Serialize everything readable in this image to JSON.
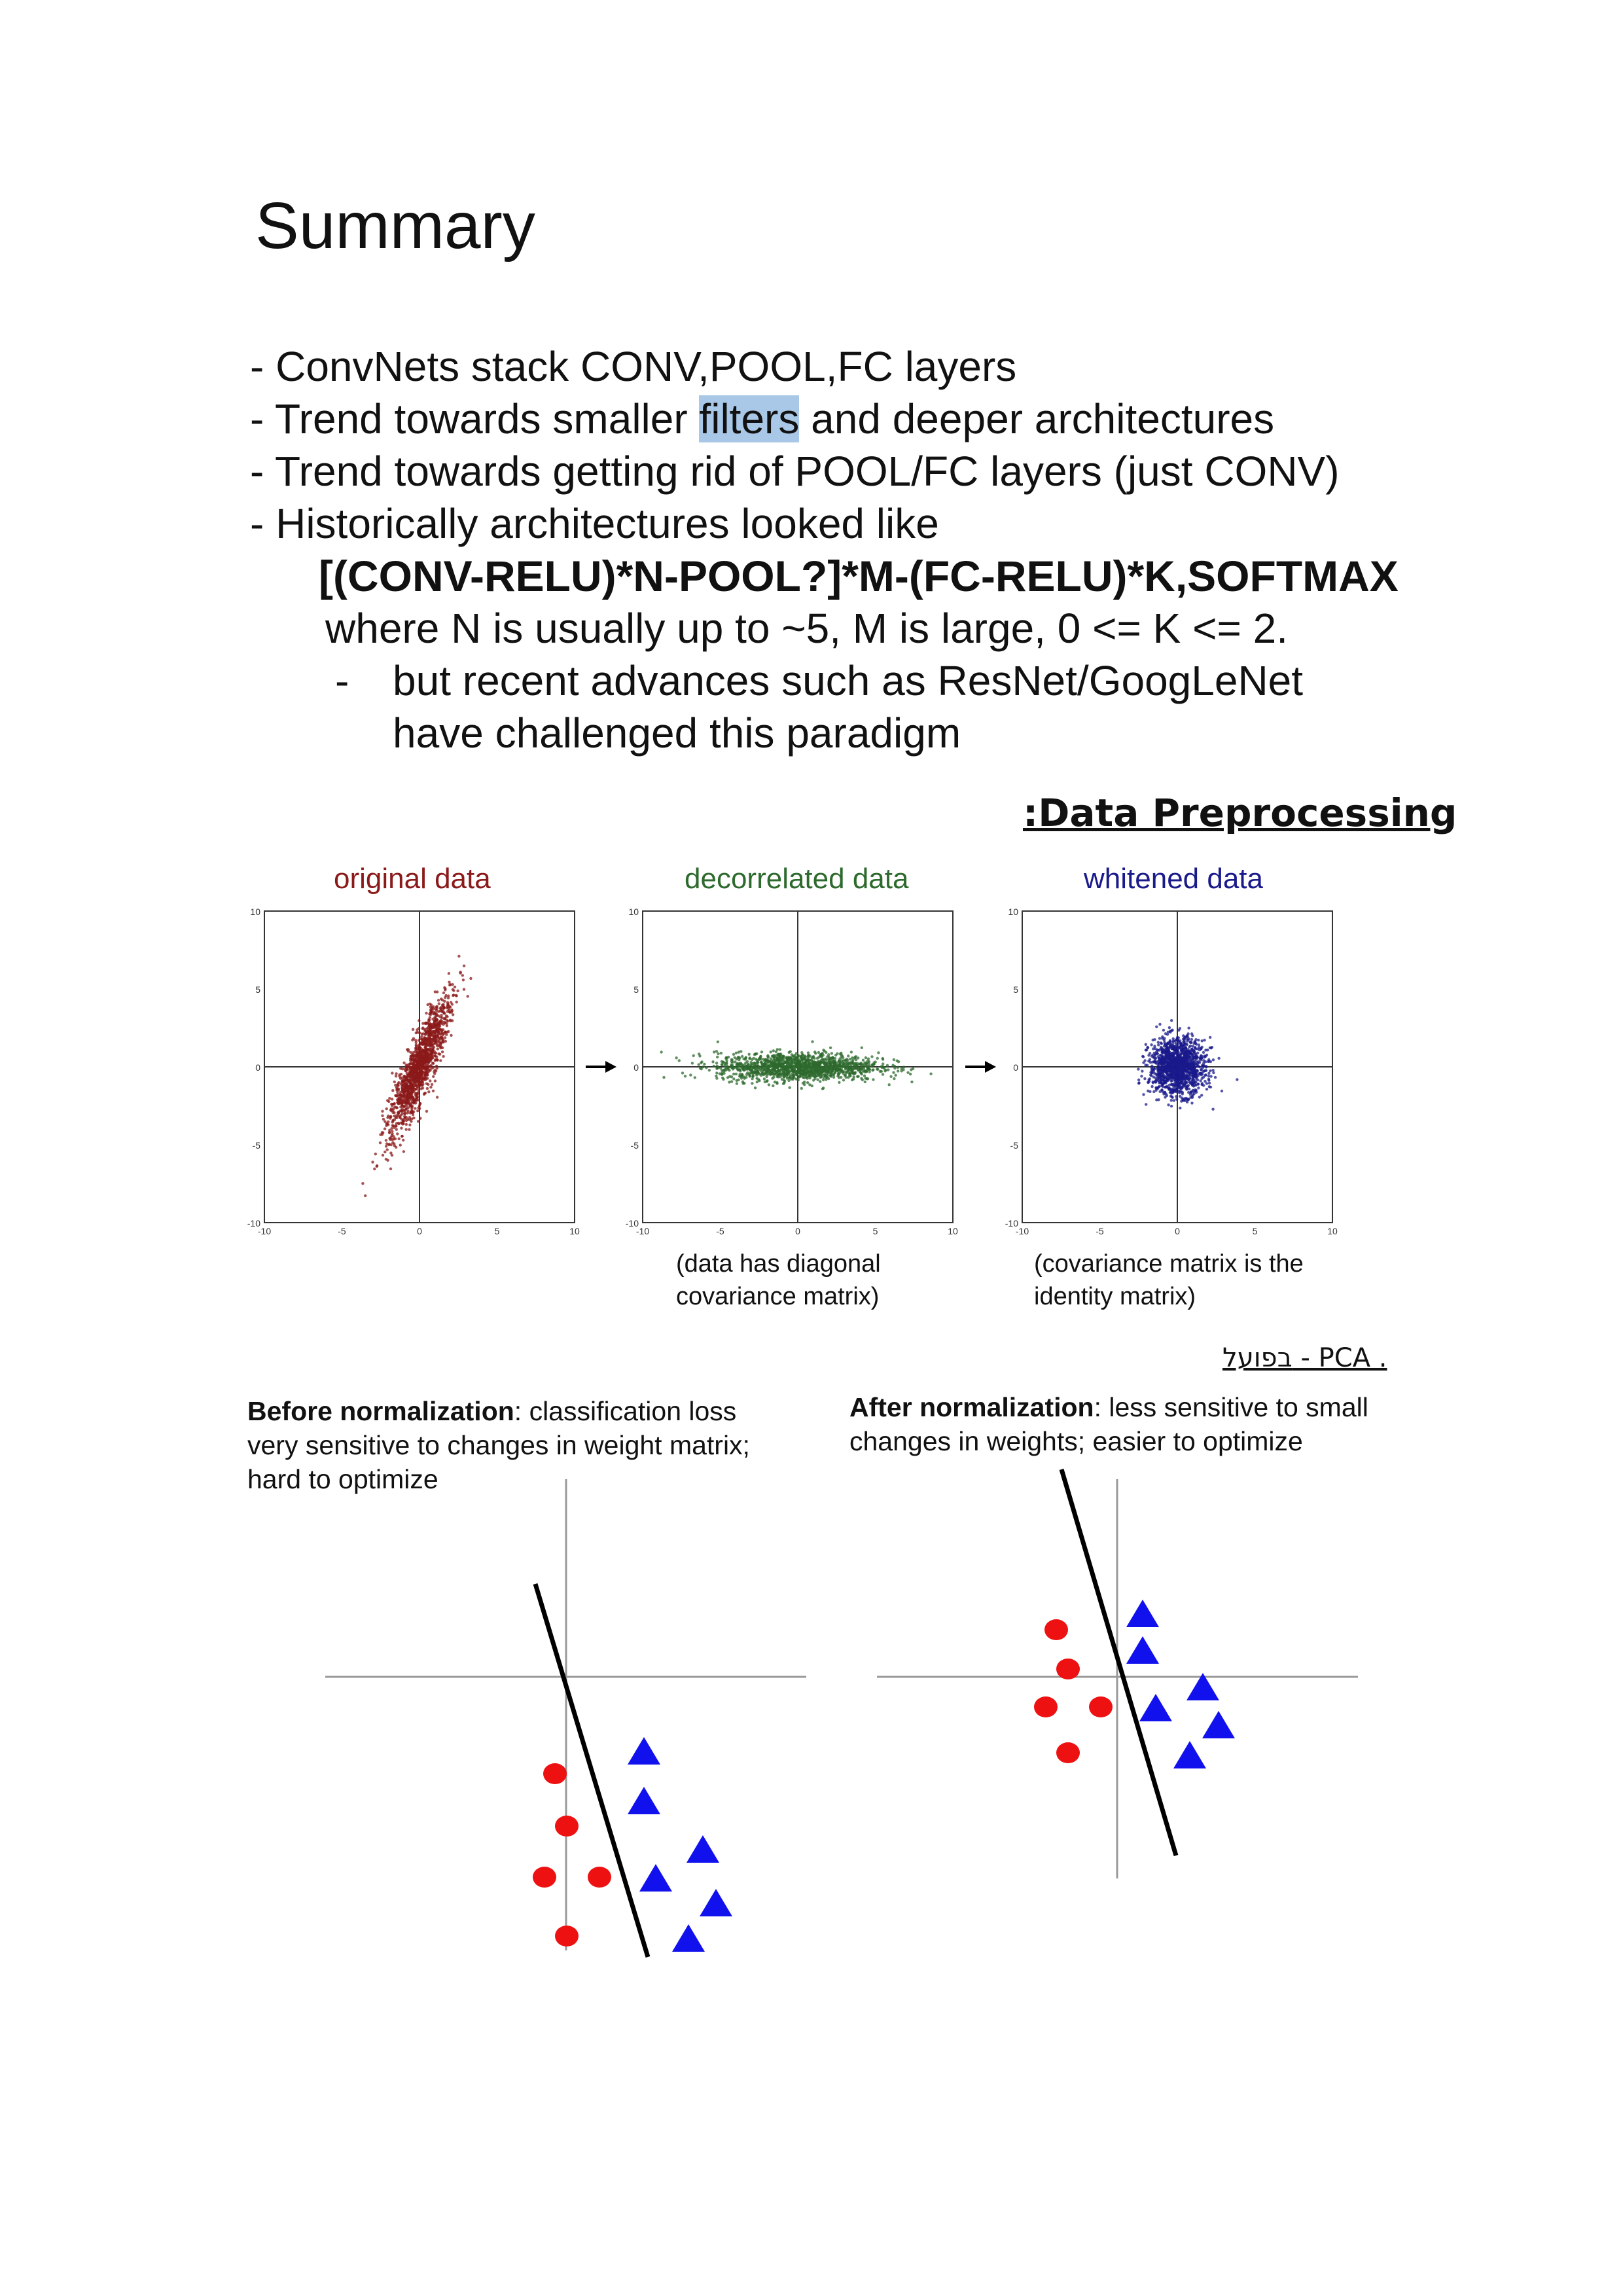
{
  "title": "Summary",
  "bullets": {
    "b1": "- ConvNets stack CONV,POOL,FC layers",
    "b2_pre": "- Trend towards smaller ",
    "b2_hl": "filters",
    "b2_post": " and deeper architectures",
    "b3": "- Trend towards getting rid of POOL/FC layers (just CONV)",
    "b4": "- Historically architectures looked like",
    "formula": "[(CONV-RELU)*N-POOL?]*M-(FC-RELU)*K,SOFTMAX",
    "where": "where N is usually up to ~5, M is large, 0 <= K <= 2.",
    "dash": "-",
    "sub1": "but recent advances such as ResNet/GoogLeNet",
    "sub2": "have challenged this paradigm"
  },
  "section_heading": ":Data Preprocessing",
  "preprocessing": {
    "plots": [
      {
        "name": "original data",
        "color": "#8b1a1a",
        "tick_labels": [
          "10",
          "5",
          "0",
          "-5",
          "-10",
          "-10",
          "-5",
          "0",
          "5",
          "10"
        ]
      },
      {
        "name": "decorrelated data",
        "color": "#2d6a2d",
        "tick_labels": [
          "10",
          "5",
          "0",
          "-5",
          "-10",
          "-10",
          "-5",
          "0",
          "5",
          "10"
        ]
      },
      {
        "name": "whitened data",
        "color": "#1a1a8b",
        "tick_labels": [
          "10",
          "5",
          "0",
          "-5",
          "-10",
          "-10",
          "-5",
          "0",
          "5",
          "10"
        ]
      }
    ],
    "caption_decorrelated_1": "(data has diagonal",
    "caption_decorrelated_2": "covariance matrix)",
    "caption_whitened_1": "(covariance matrix is the",
    "caption_whitened_2": "identity matrix)"
  },
  "pca_note": "בפועל - PCA .",
  "normalization": {
    "before_bold": "Before normalization",
    "before_rest": ": classification loss",
    "before_line2": "very sensitive to changes in weight matrix;",
    "before_line3": "hard to optimize",
    "after_bold": "After normalization",
    "after_rest": ": less sensitive to small",
    "after_line2": "changes in weights; easier to optimize",
    "circle_color": "#ee1111",
    "triangle_color": "#1111ee"
  }
}
